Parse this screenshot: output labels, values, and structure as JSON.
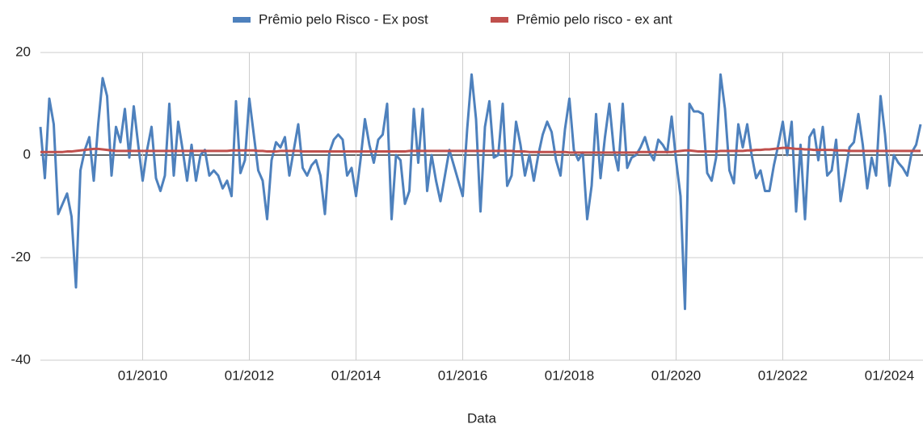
{
  "chart_data": {
    "type": "line",
    "x_label": "Data",
    "x": [
      "02/2008",
      "03/2008",
      "04/2008",
      "05/2008",
      "06/2008",
      "07/2008",
      "08/2008",
      "09/2008",
      "10/2008",
      "11/2008",
      "12/2008",
      "01/2009",
      "02/2009",
      "03/2009",
      "04/2009",
      "05/2009",
      "06/2009",
      "07/2009",
      "08/2009",
      "09/2009",
      "10/2009",
      "11/2009",
      "12/2009",
      "01/2010",
      "02/2010",
      "03/2010",
      "04/2010",
      "05/2010",
      "06/2010",
      "07/2010",
      "08/2010",
      "09/2010",
      "10/2010",
      "11/2010",
      "12/2010",
      "01/2011",
      "02/2011",
      "03/2011",
      "04/2011",
      "05/2011",
      "06/2011",
      "07/2011",
      "08/2011",
      "09/2011",
      "10/2011",
      "11/2011",
      "12/2011",
      "01/2012",
      "02/2012",
      "03/2012",
      "04/2012",
      "05/2012",
      "06/2012",
      "07/2012",
      "08/2012",
      "09/2012",
      "10/2012",
      "11/2012",
      "12/2012",
      "01/2013",
      "02/2013",
      "03/2013",
      "04/2013",
      "05/2013",
      "06/2013",
      "07/2013",
      "08/2013",
      "09/2013",
      "10/2013",
      "11/2013",
      "12/2013",
      "01/2014",
      "02/2014",
      "03/2014",
      "04/2014",
      "05/2014",
      "06/2014",
      "07/2014",
      "08/2014",
      "09/2014",
      "10/2014",
      "11/2014",
      "12/2014",
      "01/2015",
      "02/2015",
      "03/2015",
      "04/2015",
      "05/2015",
      "06/2015",
      "07/2015",
      "08/2015",
      "09/2015",
      "10/2015",
      "11/2015",
      "12/2015",
      "01/2016",
      "02/2016",
      "03/2016",
      "04/2016",
      "05/2016",
      "06/2016",
      "07/2016",
      "08/2016",
      "09/2016",
      "10/2016",
      "11/2016",
      "12/2016",
      "01/2017",
      "02/2017",
      "03/2017",
      "04/2017",
      "05/2017",
      "06/2017",
      "07/2017",
      "08/2017",
      "09/2017",
      "10/2017",
      "11/2017",
      "12/2017",
      "01/2018",
      "02/2018",
      "03/2018",
      "04/2018",
      "05/2018",
      "06/2018",
      "07/2018",
      "08/2018",
      "09/2018",
      "10/2018",
      "11/2018",
      "12/2018",
      "01/2019",
      "02/2019",
      "03/2019",
      "04/2019",
      "05/2019",
      "06/2019",
      "07/2019",
      "08/2019",
      "09/2019",
      "10/2019",
      "11/2019",
      "12/2019",
      "01/2020",
      "02/2020",
      "03/2020",
      "04/2020",
      "05/2020",
      "06/2020",
      "07/2020",
      "08/2020",
      "09/2020",
      "10/2020",
      "11/2020",
      "12/2020",
      "01/2021",
      "02/2021",
      "03/2021",
      "04/2021",
      "05/2021",
      "06/2021",
      "07/2021",
      "08/2021",
      "09/2021",
      "10/2021",
      "11/2021",
      "12/2021",
      "01/2022",
      "02/2022",
      "03/2022",
      "04/2022",
      "05/2022",
      "06/2022",
      "07/2022",
      "08/2022",
      "09/2022",
      "10/2022",
      "11/2022",
      "12/2022",
      "01/2023",
      "02/2023",
      "03/2023",
      "04/2023",
      "05/2023",
      "06/2023",
      "07/2023",
      "08/2023",
      "09/2023",
      "10/2023",
      "11/2023",
      "12/2023",
      "01/2024",
      "02/2024",
      "03/2024",
      "04/2024",
      "05/2024",
      "06/2024",
      "07/2024",
      "08/2024"
    ],
    "xticks": [
      "01/2010",
      "01/2012",
      "01/2014",
      "01/2016",
      "01/2018",
      "01/2020",
      "01/2022",
      "01/2024"
    ],
    "ylim": [
      -40,
      20
    ],
    "yticks": [
      -40,
      -20,
      0,
      20
    ],
    "grid": true,
    "legend": "top",
    "series": [
      {
        "name": "Prêmio pelo Risco - Ex post",
        "color": "#4e81bd",
        "values": [
          5.5,
          -4.5,
          11,
          6,
          -11.5,
          -9.5,
          -7.5,
          -12,
          -25.8,
          -3,
          1,
          3.5,
          -5,
          6,
          15,
          11.5,
          -4,
          5.5,
          2.5,
          9,
          -0.5,
          9.5,
          2,
          -5,
          1,
          5.5,
          -4.5,
          -7,
          -4,
          10,
          -4,
          6.5,
          1,
          -5,
          2,
          -5,
          0,
          1,
          -4,
          -3,
          -4,
          -6.5,
          -5,
          -8,
          10.5,
          -3.5,
          -1,
          11,
          4,
          -3,
          -5,
          -12.5,
          -1,
          2.5,
          1.5,
          3.5,
          -4,
          1,
          6,
          -2.5,
          -4,
          -2,
          -1,
          -4,
          -11.5,
          0.5,
          3,
          4,
          3,
          -4,
          -2.5,
          -8,
          -1,
          7,
          2,
          -1.5,
          3,
          4,
          10,
          -12.5,
          0,
          -1,
          -9.5,
          -7,
          9,
          -1.5,
          9,
          -7,
          0,
          -5,
          -9,
          -4,
          1,
          -2,
          -5,
          -8,
          5,
          15.7,
          7,
          -11,
          5.5,
          10.5,
          -0.5,
          0,
          10,
          -6,
          -4,
          6.5,
          2,
          -4,
          0,
          -5,
          0,
          4,
          6.5,
          4.5,
          -1,
          -4,
          5,
          11,
          1,
          -1,
          0.5,
          -12.5,
          -6,
          8,
          -4.5,
          3.5,
          10,
          1,
          -3,
          10,
          -2.5,
          -0.5,
          0,
          1.5,
          3.5,
          0.5,
          -1,
          3,
          2,
          0.5,
          7.5,
          -1,
          -8,
          -30,
          10,
          8.5,
          8.5,
          8,
          -3.5,
          -5,
          -0.5,
          15.7,
          9,
          -3,
          -5.5,
          6,
          1.5,
          6,
          0,
          -4.5,
          -3,
          -7,
          -7,
          -2,
          2,
          6.5,
          0,
          6.5,
          -11,
          2,
          -12.5,
          3.5,
          5,
          -1,
          5.5,
          -4,
          -3,
          3,
          -9,
          -4,
          1.5,
          2.5,
          8,
          2,
          -6.5,
          -0.5,
          -4,
          11.5,
          4,
          -6,
          0,
          -1.5,
          -2.5,
          -4,
          0.5,
          2,
          6
        ]
      },
      {
        "name": "Prêmio pelo risco - ex ant",
        "color": "#c0504d",
        "values": [
          0.6,
          0.6,
          0.6,
          0.6,
          0.6,
          0.6,
          0.7,
          0.7,
          0.8,
          0.9,
          1.0,
          1.1,
          1.2,
          1.2,
          1.1,
          1.0,
          0.9,
          0.8,
          0.8,
          0.8,
          0.8,
          0.8,
          0.8,
          0.8,
          0.8,
          0.8,
          0.8,
          0.8,
          0.8,
          0.8,
          0.8,
          0.8,
          0.8,
          0.8,
          0.8,
          0.8,
          0.8,
          0.8,
          0.8,
          0.8,
          0.8,
          0.8,
          0.8,
          0.9,
          0.9,
          0.9,
          0.9,
          0.9,
          0.9,
          0.8,
          0.8,
          0.7,
          0.7,
          0.7,
          0.8,
          0.8,
          0.8,
          0.8,
          0.8,
          0.7,
          0.7,
          0.7,
          0.7,
          0.7,
          0.7,
          0.7,
          0.7,
          0.7,
          0.7,
          0.7,
          0.7,
          0.7,
          0.7,
          0.7,
          0.7,
          0.7,
          0.7,
          0.7,
          0.7,
          0.7,
          0.7,
          0.7,
          0.7,
          0.8,
          0.8,
          0.8,
          0.8,
          0.8,
          0.8,
          0.8,
          0.8,
          0.8,
          0.8,
          0.8,
          0.8,
          0.8,
          0.8,
          0.8,
          0.8,
          0.8,
          0.8,
          0.8,
          0.8,
          0.8,
          0.8,
          0.8,
          0.8,
          0.7,
          0.7,
          0.7,
          0.6,
          0.6,
          0.6,
          0.6,
          0.6,
          0.6,
          0.6,
          0.6,
          0.6,
          0.5,
          0.5,
          0.5,
          0.5,
          0.5,
          0.5,
          0.5,
          0.5,
          0.5,
          0.5,
          0.5,
          0.5,
          0.5,
          0.5,
          0.5,
          0.5,
          0.6,
          0.6,
          0.6,
          0.6,
          0.6,
          0.6,
          0.6,
          0.6,
          0.7,
          0.8,
          0.9,
          0.9,
          0.8,
          0.7,
          0.7,
          0.7,
          0.7,
          0.7,
          0.8,
          0.8,
          0.8,
          0.8,
          0.8,
          0.8,
          0.9,
          0.9,
          1.0,
          1.0,
          1.1,
          1.1,
          1.2,
          1.3,
          1.4,
          1.4,
          1.3,
          1.2,
          1.2,
          1.1,
          1.1,
          1.0,
          1.0,
          1.0,
          1.0,
          1.0,
          0.9,
          0.9,
          0.9,
          0.8,
          0.8,
          0.8,
          0.8,
          0.8,
          0.8,
          0.8,
          0.8,
          0.8,
          0.8,
          0.8,
          0.8,
          0.8,
          0.8,
          0.8,
          0.8,
          0.8
        ]
      }
    ]
  }
}
